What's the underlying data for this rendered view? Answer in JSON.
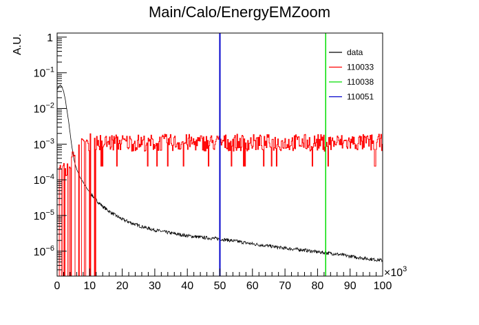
{
  "chart_data": {
    "type": "line",
    "title": "Main/Calo/EnergyEMZoom",
    "xlabel": "",
    "ylabel": "A.U.",
    "x_multiplier_label": "×10",
    "x_multiplier_exp": "3",
    "xlim": [
      0,
      100
    ],
    "ylim": [
      2e-07,
      1.3
    ],
    "y_scale": "log",
    "grid": false,
    "legend_position": "top-right",
    "x_ticks": [
      "0",
      "10",
      "20",
      "30",
      "40",
      "50",
      "60",
      "70",
      "80",
      "90",
      "100"
    ],
    "y_ticks": [
      {
        "base": "1",
        "exp": "",
        "value": 1
      },
      {
        "base": "10",
        "exp": "−1",
        "value": 0.1
      },
      {
        "base": "10",
        "exp": "−2",
        "value": 0.01
      },
      {
        "base": "10",
        "exp": "−3",
        "value": 0.001
      },
      {
        "base": "10",
        "exp": "−4",
        "value": 0.0001
      },
      {
        "base": "10",
        "exp": "−5",
        "value": 1e-05
      },
      {
        "base": "10",
        "exp": "−6",
        "value": 1e-06
      }
    ],
    "series": [
      {
        "name": "data",
        "color": "#000000",
        "kind": "points",
        "x": [
          0.2,
          0.5,
          1,
          1.5,
          2,
          2.5,
          3,
          3.5,
          4,
          4.5,
          5,
          5.5,
          6,
          7,
          8,
          9,
          10,
          12,
          14,
          16,
          18,
          20,
          25,
          30,
          35,
          40,
          45,
          50,
          55,
          60,
          65,
          70,
          75,
          80,
          85,
          90,
          95,
          100
        ],
        "values": [
          0.035,
          0.042,
          0.045,
          0.04,
          0.03,
          0.018,
          0.009,
          0.0045,
          0.002,
          0.0009,
          0.00045,
          0.00028,
          0.0002,
          0.00012,
          8.5e-05,
          6e-05,
          4.5e-05,
          2.7e-05,
          1.8e-05,
          1.3e-05,
          1e-05,
          7.8e-06,
          5.2e-06,
          3.9e-06,
          3.2e-06,
          2.7e-06,
          2.4e-06,
          2.2e-06,
          1.9e-06,
          1.6e-06,
          1.4e-06,
          1.2e-06,
          1.1e-06,
          9.5e-07,
          8.5e-07,
          7.2e-07,
          6.2e-07,
          5.5e-07
        ]
      },
      {
        "name": "110033",
        "color": "#ff0000",
        "kind": "noisy-histogram",
        "x": [
          0,
          2,
          4,
          6,
          8,
          10,
          15,
          20,
          30,
          40,
          50,
          60,
          70,
          80,
          90,
          100
        ],
        "values": [
          0.00015,
          0.00018,
          0.0003,
          0.0006,
          0.0009,
          0.0011,
          0.0011,
          0.0011,
          0.0011,
          0.0011,
          0.0011,
          0.0011,
          0.0011,
          0.0011,
          0.0011,
          0.0011
        ]
      },
      {
        "name": "110038",
        "color": "#00dd00",
        "kind": "vertical-line",
        "x_value": 82.5
      },
      {
        "name": "110051",
        "color": "#0000cc",
        "kind": "vertical-line",
        "x_value": 50
      }
    ]
  }
}
